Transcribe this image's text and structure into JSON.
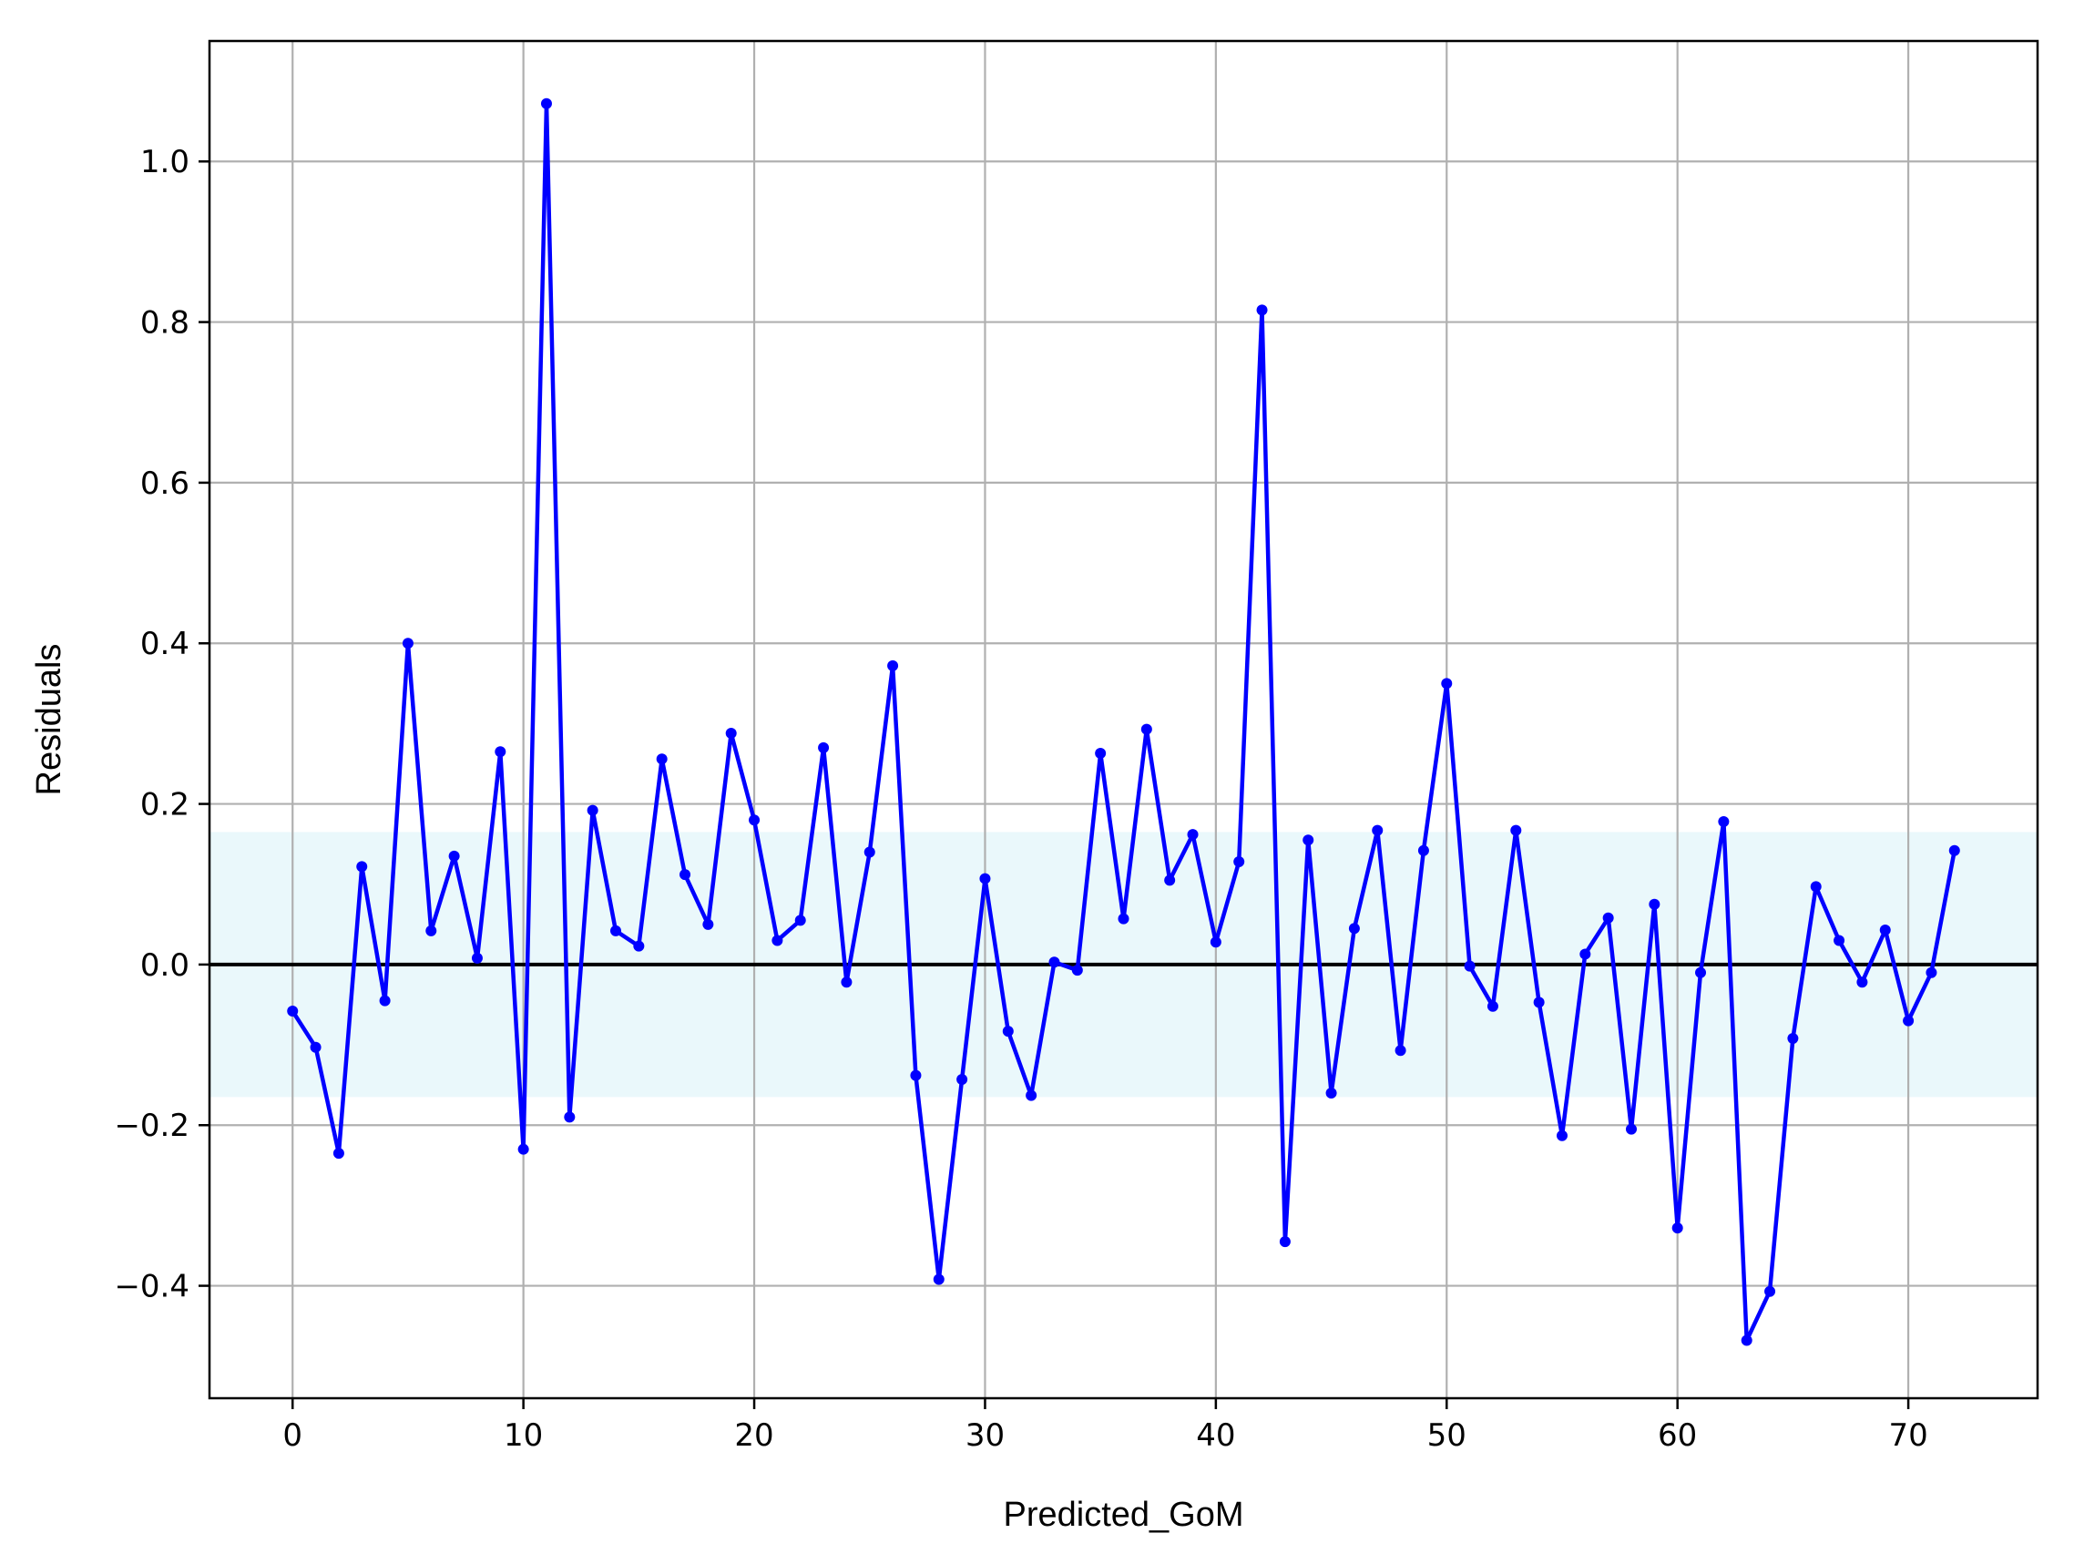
{
  "chart_data": {
    "type": "line",
    "xlabel": "Predicted_GoM",
    "ylabel": "Residuals",
    "xlim": [
      -3.6,
      75.6
    ],
    "ylim": [
      -0.54,
      1.15
    ],
    "x_ticks": [
      0,
      10,
      20,
      30,
      40,
      50,
      60,
      70
    ],
    "x_tick_labels": [
      "0",
      "10",
      "20",
      "30",
      "40",
      "50",
      "60",
      "70"
    ],
    "y_ticks": [
      -0.4,
      -0.2,
      0.0,
      0.2,
      0.4,
      0.6,
      0.8,
      1.0
    ],
    "y_tick_labels": [
      "−0.4",
      "−0.2",
      "0.0",
      "0.2",
      "0.4",
      "0.6",
      "0.8",
      "1.0"
    ],
    "grid": true,
    "band": {
      "lower": -0.165,
      "upper": 0.165,
      "color": "#eaf8fb"
    },
    "reference_line": {
      "y": 0.0,
      "color": "#000000"
    },
    "series": [
      {
        "color": "#0000ff",
        "marker": "point",
        "x": [
          0,
          1,
          2,
          3,
          4,
          5,
          6,
          7,
          8,
          9,
          10,
          11,
          12,
          13,
          14,
          15,
          16,
          17,
          18,
          19,
          20,
          21,
          22,
          23,
          24,
          25,
          26,
          27,
          28,
          29,
          30,
          31,
          32,
          33,
          34,
          35,
          36,
          37,
          38,
          39,
          40,
          41,
          42,
          43,
          44,
          45,
          46,
          47,
          48,
          49,
          50,
          51,
          52,
          53,
          54,
          55,
          56,
          57,
          58,
          59,
          60,
          61,
          62,
          63,
          64,
          65,
          66,
          67,
          68,
          69,
          70,
          71,
          72
        ],
        "values": [
          -0.058,
          -0.103,
          -0.235,
          0.122,
          -0.045,
          0.4,
          0.042,
          0.135,
          0.008,
          0.265,
          -0.23,
          1.072,
          -0.19,
          0.192,
          0.042,
          0.023,
          0.256,
          0.112,
          0.05,
          0.288,
          0.18,
          0.03,
          0.055,
          0.27,
          -0.022,
          0.14,
          0.372,
          -0.138,
          -0.392,
          -0.143,
          0.107,
          -0.083,
          -0.163,
          0.003,
          -0.007,
          0.263,
          0.057,
          0.293,
          0.105,
          0.162,
          0.028,
          0.128,
          0.815,
          -0.345,
          0.155,
          -0.16,
          0.045,
          0.167,
          -0.107,
          0.142,
          0.35,
          -0.002,
          -0.052,
          0.167,
          -0.047,
          -0.213,
          0.013,
          0.058,
          -0.205,
          0.075,
          -0.328,
          -0.01,
          0.178,
          -0.468,
          -0.407,
          -0.092,
          0.097,
          0.03,
          -0.022,
          0.043,
          -0.07,
          -0.01,
          0.142
        ]
      }
    ]
  }
}
